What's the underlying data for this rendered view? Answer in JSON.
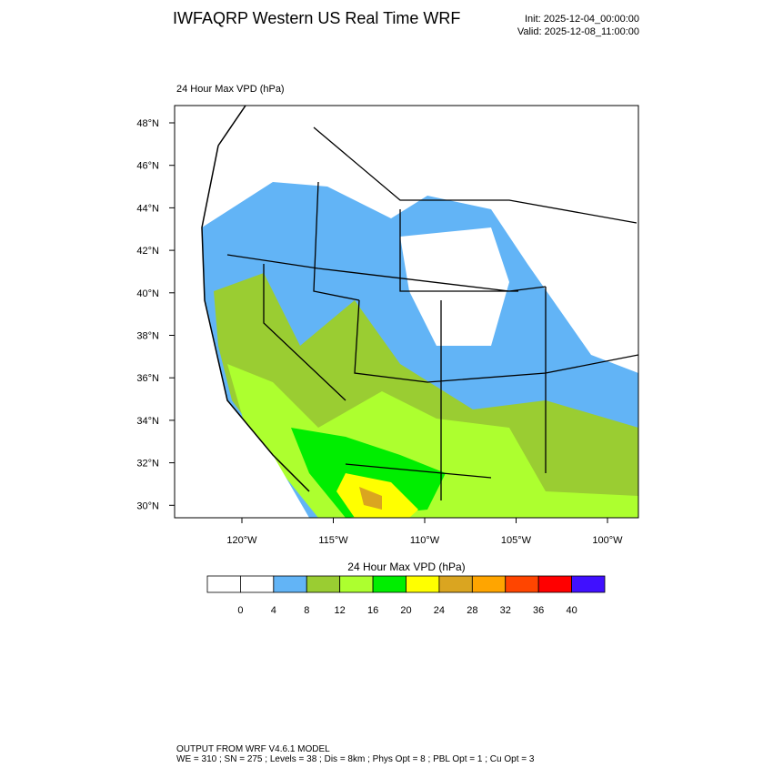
{
  "header": {
    "title": "IWFAQRP Western US Real Time WRF",
    "init": "Init: 2025-12-04_00:00:00",
    "valid": "Valid: 2025-12-08_11:00:00"
  },
  "map": {
    "label": "24 Hour Max VPD   (hPa)",
    "lat_labels": [
      "48°N",
      "46°N",
      "44°N",
      "42°N",
      "40°N",
      "38°N",
      "36°N",
      "34°N",
      "32°N",
      "30°N"
    ],
    "lon_labels": [
      "120°W",
      "115°W",
      "110°W",
      "105°W",
      "100°W"
    ]
  },
  "colorbar": {
    "title": "24 Hour Max VPD  (hPa)",
    "ticks": [
      0,
      4,
      8,
      12,
      16,
      20,
      24,
      28,
      32,
      36,
      40
    ],
    "colors": [
      "#ffffff",
      "#ffffff",
      "#62b4f6",
      "#9acd32",
      "#adff2f",
      "#00ee00",
      "#ffff00",
      "#daa520",
      "#ffa500",
      "#ff4500",
      "#ff0000",
      "#4010ff"
    ]
  },
  "footer": {
    "line1": "OUTPUT FROM WRF V4.6.1 MODEL",
    "line2": "WE = 310 ; SN = 275 ; Levels = 38 ; Dis = 8km ; Phys Opt = 8 ; PBL Opt = 1 ; Cu Opt = 3"
  }
}
